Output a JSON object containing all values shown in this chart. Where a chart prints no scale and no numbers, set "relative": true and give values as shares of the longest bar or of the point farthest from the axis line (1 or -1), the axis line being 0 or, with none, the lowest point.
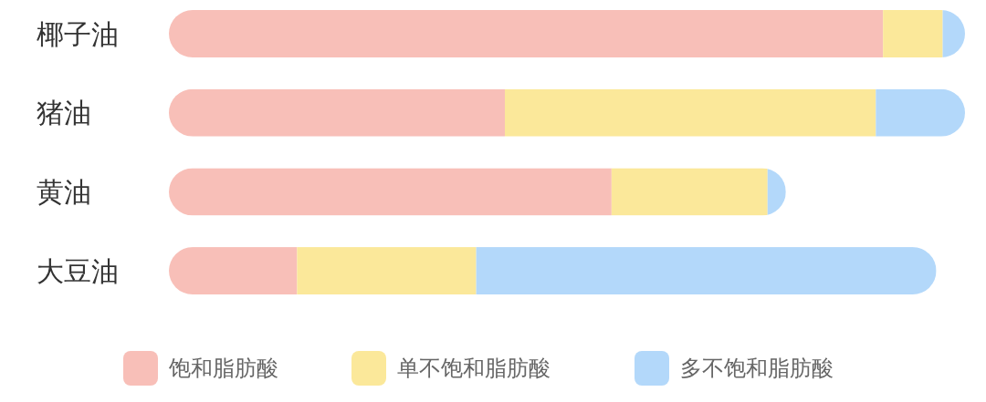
{
  "chart_data": {
    "type": "bar",
    "orientation": "horizontal",
    "stacked": true,
    "relative": true,
    "legend": "bottom",
    "grid": false,
    "categories": [
      "椰子油",
      "猪油",
      "黄油",
      "大豆油"
    ],
    "series": [
      {
        "name": "饱和脂肪酸",
        "color": "#f8bfb8",
        "values": [
          0.897,
          0.422,
          0.556,
          0.161
        ]
      },
      {
        "name": "单不饱和脂肪酸",
        "color": "#fbe89a",
        "values": [
          0.075,
          0.466,
          0.196,
          0.225
        ]
      },
      {
        "name": "多不饱和脂肪酸",
        "color": "#b3d8fa",
        "values": [
          0.028,
          0.112,
          0.023,
          0.578
        ]
      }
    ]
  }
}
